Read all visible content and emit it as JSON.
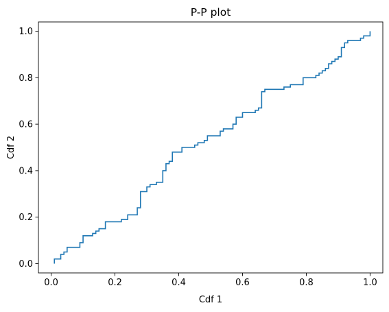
{
  "chart_data": {
    "type": "line",
    "title": "P-P plot",
    "xlabel": "Cdf 1",
    "ylabel": "Cdf 2",
    "xlim": [
      -0.04,
      1.04
    ],
    "ylim": [
      -0.04,
      1.04
    ],
    "xticks": [
      "0.0",
      "0.2",
      "0.4",
      "0.6",
      "0.8",
      "1.0"
    ],
    "yticks": [
      "0.0",
      "0.2",
      "0.4",
      "0.6",
      "0.8",
      "1.0"
    ],
    "grid": false,
    "line_color": "#1f77b4",
    "step": true,
    "points": [
      [
        0.01,
        0.0
      ],
      [
        0.01,
        0.02
      ],
      [
        0.03,
        0.02
      ],
      [
        0.03,
        0.04
      ],
      [
        0.04,
        0.04
      ],
      [
        0.04,
        0.05
      ],
      [
        0.05,
        0.05
      ],
      [
        0.05,
        0.07
      ],
      [
        0.09,
        0.07
      ],
      [
        0.09,
        0.09
      ],
      [
        0.1,
        0.09
      ],
      [
        0.1,
        0.12
      ],
      [
        0.13,
        0.12
      ],
      [
        0.13,
        0.13
      ],
      [
        0.14,
        0.13
      ],
      [
        0.14,
        0.14
      ],
      [
        0.15,
        0.14
      ],
      [
        0.15,
        0.15
      ],
      [
        0.17,
        0.15
      ],
      [
        0.17,
        0.18
      ],
      [
        0.22,
        0.18
      ],
      [
        0.22,
        0.19
      ],
      [
        0.24,
        0.19
      ],
      [
        0.24,
        0.21
      ],
      [
        0.27,
        0.21
      ],
      [
        0.27,
        0.24
      ],
      [
        0.28,
        0.24
      ],
      [
        0.28,
        0.31
      ],
      [
        0.3,
        0.31
      ],
      [
        0.3,
        0.33
      ],
      [
        0.31,
        0.33
      ],
      [
        0.31,
        0.34
      ],
      [
        0.33,
        0.34
      ],
      [
        0.33,
        0.35
      ],
      [
        0.35,
        0.35
      ],
      [
        0.35,
        0.4
      ],
      [
        0.36,
        0.4
      ],
      [
        0.36,
        0.43
      ],
      [
        0.37,
        0.43
      ],
      [
        0.37,
        0.44
      ],
      [
        0.38,
        0.44
      ],
      [
        0.38,
        0.48
      ],
      [
        0.41,
        0.48
      ],
      [
        0.41,
        0.5
      ],
      [
        0.45,
        0.5
      ],
      [
        0.45,
        0.51
      ],
      [
        0.46,
        0.51
      ],
      [
        0.46,
        0.52
      ],
      [
        0.48,
        0.52
      ],
      [
        0.48,
        0.53
      ],
      [
        0.49,
        0.53
      ],
      [
        0.49,
        0.55
      ],
      [
        0.53,
        0.55
      ],
      [
        0.53,
        0.57
      ],
      [
        0.54,
        0.57
      ],
      [
        0.54,
        0.58
      ],
      [
        0.57,
        0.58
      ],
      [
        0.57,
        0.6
      ],
      [
        0.58,
        0.6
      ],
      [
        0.58,
        0.63
      ],
      [
        0.6,
        0.63
      ],
      [
        0.6,
        0.65
      ],
      [
        0.64,
        0.65
      ],
      [
        0.64,
        0.66
      ],
      [
        0.65,
        0.66
      ],
      [
        0.65,
        0.67
      ],
      [
        0.66,
        0.67
      ],
      [
        0.66,
        0.74
      ],
      [
        0.67,
        0.74
      ],
      [
        0.67,
        0.75
      ],
      [
        0.73,
        0.75
      ],
      [
        0.73,
        0.76
      ],
      [
        0.75,
        0.76
      ],
      [
        0.75,
        0.77
      ],
      [
        0.79,
        0.77
      ],
      [
        0.79,
        0.8
      ],
      [
        0.83,
        0.8
      ],
      [
        0.83,
        0.81
      ],
      [
        0.84,
        0.81
      ],
      [
        0.84,
        0.82
      ],
      [
        0.85,
        0.82
      ],
      [
        0.85,
        0.83
      ],
      [
        0.86,
        0.83
      ],
      [
        0.86,
        0.84
      ],
      [
        0.87,
        0.84
      ],
      [
        0.87,
        0.86
      ],
      [
        0.88,
        0.86
      ],
      [
        0.88,
        0.87
      ],
      [
        0.89,
        0.87
      ],
      [
        0.89,
        0.88
      ],
      [
        0.9,
        0.88
      ],
      [
        0.9,
        0.89
      ],
      [
        0.91,
        0.89
      ],
      [
        0.91,
        0.93
      ],
      [
        0.92,
        0.93
      ],
      [
        0.92,
        0.95
      ],
      [
        0.93,
        0.95
      ],
      [
        0.93,
        0.96
      ],
      [
        0.97,
        0.96
      ],
      [
        0.97,
        0.97
      ],
      [
        0.98,
        0.97
      ],
      [
        0.98,
        0.98
      ],
      [
        1.0,
        0.98
      ],
      [
        1.0,
        1.0
      ]
    ]
  }
}
